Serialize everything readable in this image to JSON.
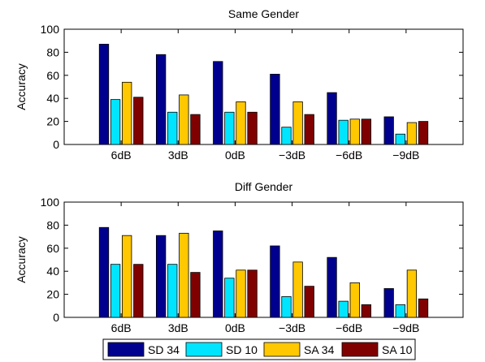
{
  "chart_data": [
    {
      "type": "bar",
      "title": "Same Gender",
      "xlabel": "",
      "ylabel": "Accuracy",
      "ylim": [
        0,
        100
      ],
      "yticks": [
        0,
        20,
        40,
        60,
        80,
        100
      ],
      "grid": false,
      "categories": [
        "6dB",
        "3dB",
        "0dB",
        "−3dB",
        "−6dB",
        "−9dB"
      ],
      "series": [
        {
          "name": "SD 34",
          "color": "#00008f",
          "values": [
            87,
            78,
            72,
            61,
            45,
            24
          ]
        },
        {
          "name": "SD 10",
          "color": "#00e5ff",
          "values": [
            39,
            28,
            28,
            15,
            21,
            9
          ]
        },
        {
          "name": "SA 34",
          "color": "#ffc800",
          "values": [
            54,
            43,
            37,
            37,
            22,
            19
          ]
        },
        {
          "name": "SA 10",
          "color": "#800000",
          "values": [
            41,
            26,
            28,
            26,
            22,
            20
          ]
        }
      ]
    },
    {
      "type": "bar",
      "title": "Diff Gender",
      "xlabel": "",
      "ylabel": "Accuracy",
      "ylim": [
        0,
        100
      ],
      "yticks": [
        0,
        20,
        40,
        60,
        80,
        100
      ],
      "grid": false,
      "categories": [
        "6dB",
        "3dB",
        "0dB",
        "−3dB",
        "−6dB",
        "−9dB"
      ],
      "series": [
        {
          "name": "SD 34",
          "color": "#00008f",
          "values": [
            78,
            71,
            75,
            62,
            52,
            25
          ]
        },
        {
          "name": "SD 10",
          "color": "#00e5ff",
          "values": [
            46,
            46,
            34,
            18,
            14,
            11
          ]
        },
        {
          "name": "SA 34",
          "color": "#ffc800",
          "values": [
            71,
            73,
            41,
            48,
            30,
            41
          ]
        },
        {
          "name": "SA 10",
          "color": "#800000",
          "values": [
            46,
            39,
            41,
            27,
            11,
            16
          ]
        }
      ]
    }
  ],
  "legend": {
    "placement": "bottom-center",
    "entries": [
      "SD 34",
      "SD 10",
      "SA 34",
      "SA 10"
    ]
  }
}
